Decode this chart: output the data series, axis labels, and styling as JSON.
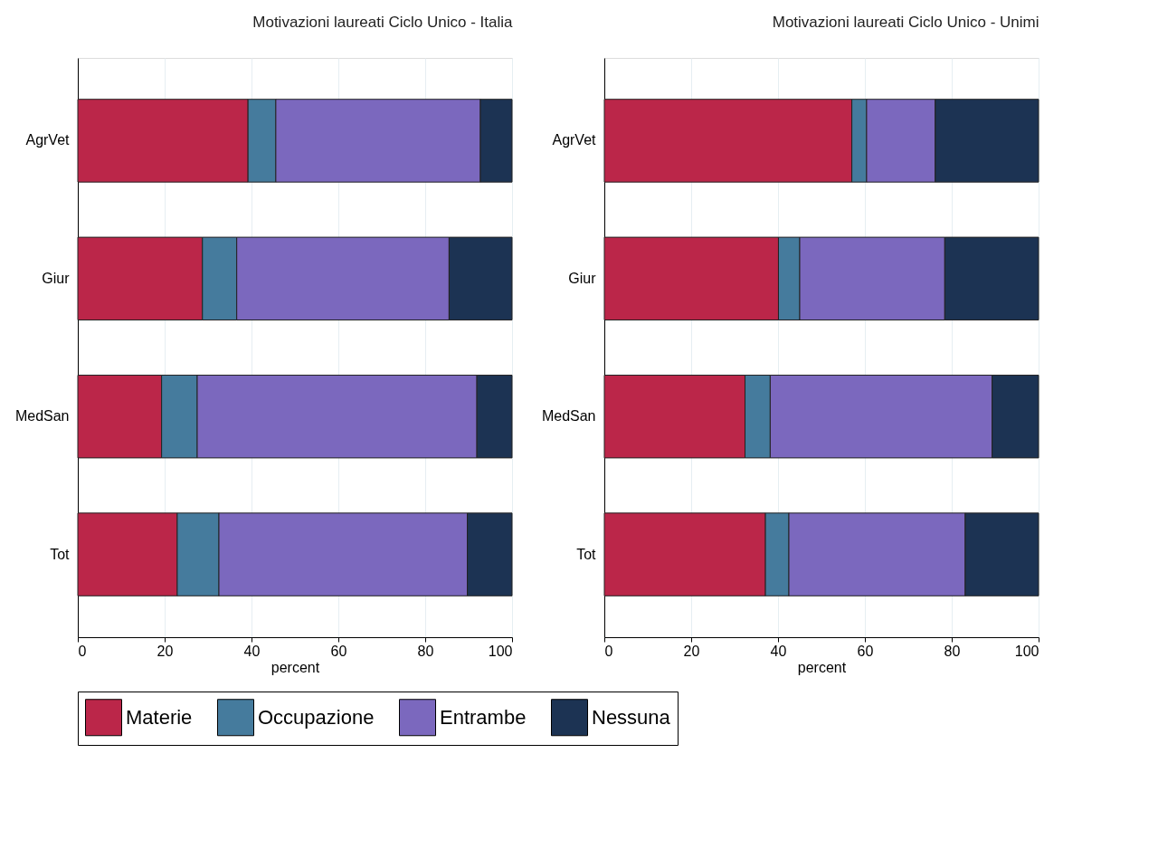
{
  "chart_data": [
    {
      "type": "bar",
      "orientation": "horizontal",
      "stacked": true,
      "title": "Motivazioni laureati Ciclo Unico - Italia",
      "xlabel": "percent",
      "categories": [
        "AgrVet",
        "Giur",
        "MedSan",
        "Tot"
      ],
      "xlim": [
        0,
        100
      ],
      "xticks": [
        0,
        20,
        40,
        60,
        80,
        100
      ],
      "grid": "x",
      "legend": "bottom",
      "series": [
        {
          "name": "Materie",
          "color": "#bb2649",
          "values": [
            39.2,
            28.7,
            19.3,
            22.9
          ]
        },
        {
          "name": "Occupazione",
          "color": "#457b9d",
          "values": [
            6.4,
            7.9,
            8.2,
            9.6
          ]
        },
        {
          "name": "Entrambe",
          "color": "#7b68be",
          "values": [
            47.1,
            48.9,
            64.4,
            57.2
          ]
        },
        {
          "name": "Nessuna",
          "color": "#1c3353",
          "values": [
            7.3,
            14.5,
            8.1,
            10.3
          ]
        }
      ]
    },
    {
      "type": "bar",
      "orientation": "horizontal",
      "stacked": true,
      "title": "Motivazioni laureati Ciclo Unico - Unimi",
      "xlabel": "percent",
      "categories": [
        "AgrVet",
        "Giur",
        "MedSan",
        "Tot"
      ],
      "xlim": [
        0,
        100
      ],
      "xticks": [
        0,
        20,
        40,
        60,
        80,
        100
      ],
      "grid": "x",
      "legend": "bottom",
      "series": [
        {
          "name": "Materie",
          "color": "#bb2649",
          "values": [
            57.0,
            40.1,
            32.4,
            37.1
          ]
        },
        {
          "name": "Occupazione",
          "color": "#457b9d",
          "values": [
            3.4,
            4.9,
            5.8,
            5.4
          ]
        },
        {
          "name": "Entrambe",
          "color": "#7b68be",
          "values": [
            15.8,
            33.4,
            51.1,
            40.6
          ]
        },
        {
          "name": "Nessuna",
          "color": "#1c3353",
          "values": [
            23.8,
            21.6,
            10.7,
            16.9
          ]
        }
      ]
    }
  ]
}
